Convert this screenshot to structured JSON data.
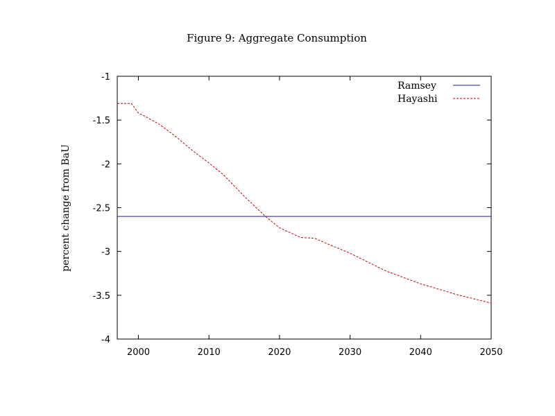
{
  "chart_data": {
    "type": "line",
    "title": "Figure 9: Aggregate Consumption",
    "xlabel": "",
    "ylabel": "percent change from BaU",
    "xlim": [
      1997,
      2050
    ],
    "ylim": [
      -4,
      -1
    ],
    "xticks": [
      2000,
      2010,
      2020,
      2030,
      2040,
      2050
    ],
    "yticks": [
      -1,
      -1.5,
      -2,
      -2.5,
      -3,
      -3.5,
      -4
    ],
    "grid": false,
    "legend_position": "top-right",
    "series": [
      {
        "name": "Ramsey",
        "color": "#1a1a8c",
        "style": "solid",
        "x": [
          1997,
          2050
        ],
        "y": [
          -2.6,
          -2.6
        ]
      },
      {
        "name": "Hayashi",
        "color": "#cc0000",
        "style": "dashed",
        "x": [
          1997,
          1999,
          2000,
          2001,
          2003,
          2005,
          2008,
          2010,
          2012,
          2015,
          2018,
          2020,
          2023,
          2025,
          2027,
          2030,
          2035,
          2040,
          2043,
          2045,
          2048,
          2050
        ],
        "y": [
          -1.31,
          -1.31,
          -1.42,
          -1.46,
          -1.55,
          -1.67,
          -1.87,
          -1.99,
          -2.12,
          -2.37,
          -2.6,
          -2.73,
          -2.84,
          -2.85,
          -2.92,
          -3.02,
          -3.22,
          -3.37,
          -3.44,
          -3.49,
          -3.55,
          -3.59
        ]
      }
    ]
  }
}
